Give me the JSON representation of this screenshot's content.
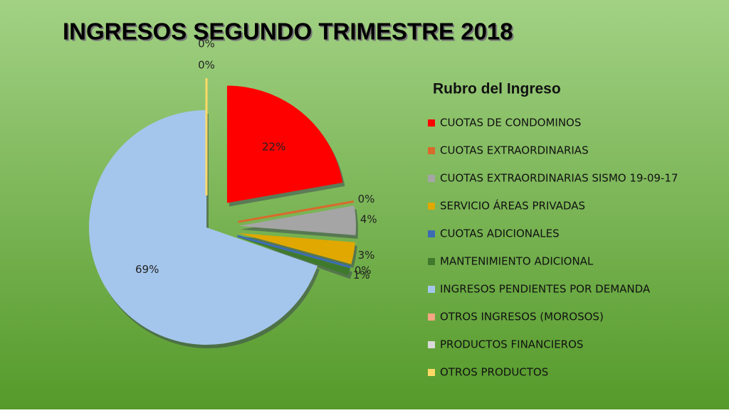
{
  "chart_data": {
    "type": "pie",
    "title": "INGRESOS SEGUNDO TRIMESTRE 2018",
    "legend_title": "Rubro del Ingreso",
    "categories": [
      "CUOTAS DE CONDOMINOS",
      "CUOTAS EXTRAORDINARIAS",
      "CUOTAS EXTRAORDINARIAS SISMO 19-09-17",
      "SERVICIO ÁREAS PRIVADAS",
      "CUOTAS ADICIONALES",
      "MANTENIMIENTO ADICIONAL",
      "INGRESOS PENDIENTES POR DEMANDA",
      "OTROS INGRESOS (MOROSOS)",
      "PRODUCTOS FINANCIEROS",
      "OTROS PRODUCTOS"
    ],
    "values": [
      22,
      0,
      4,
      3,
      0,
      1,
      69,
      0,
      0,
      0
    ],
    "value_labels": [
      "22%",
      "0%",
      "4%",
      "3%",
      "0%",
      "1%",
      "69%",
      "0%",
      "0%",
      null
    ],
    "colors": [
      "#ff0000",
      "#d86a2c",
      "#a5a5a5",
      "#e0a800",
      "#3d6cb4",
      "#3f7a2c",
      "#a4c6ec",
      "#f4a582",
      "#d9d9d9",
      "#ffd966"
    ],
    "legend": "right"
  }
}
